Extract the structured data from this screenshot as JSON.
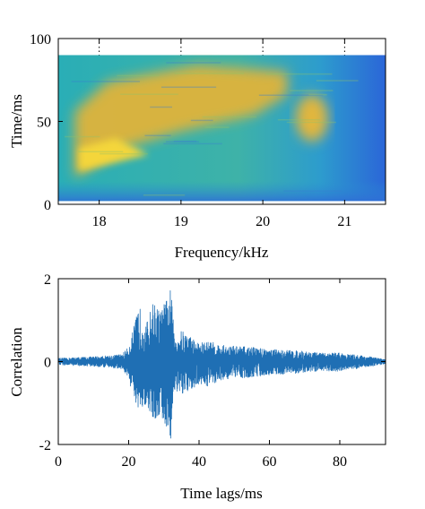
{
  "chart_data": [
    {
      "type": "heatmap",
      "title": "",
      "xlabel": "Frequency/kHz",
      "ylabel": "Time/ms",
      "xlim": [
        17.5,
        21.5
      ],
      "ylim": [
        0,
        100
      ],
      "xticks": [
        18,
        19,
        20,
        21
      ],
      "yticks": [
        0,
        50,
        100
      ],
      "xtick_labels": [
        "18",
        "19",
        "20",
        "21"
      ],
      "ytick_labels": [
        "0",
        "50",
        "100"
      ],
      "data_extent": {
        "x": [
          17.5,
          21.5
        ],
        "y": [
          2,
          90
        ]
      },
      "colormap": "parula",
      "colors": [
        "#3b4cc0",
        "#1f8fd6",
        "#2bb3c0",
        "#7fc06a",
        "#e8b53c",
        "#f7d23a"
      ],
      "grid": "dotted vertical at x ticks, top edge",
      "features": [
        {
          "description": "high-intensity band",
          "from": [
            17.7,
            22
          ],
          "to": [
            20.3,
            72
          ]
        },
        {
          "description": "high-intensity patch",
          "center": [
            20.6,
            52
          ]
        }
      ]
    },
    {
      "type": "line",
      "title": "",
      "xlabel": "Time lags/ms",
      "ylabel": "Correlation",
      "xlim": [
        0,
        93
      ],
      "ylim": [
        -2,
        2
      ],
      "xticks": [
        0,
        20,
        40,
        60,
        80
      ],
      "yticks": [
        -2,
        0,
        2
      ],
      "xtick_labels": [
        "0",
        "20",
        "40",
        "60",
        "80"
      ],
      "ytick_labels": [
        "-2",
        "0",
        "2"
      ],
      "color": "#1f6fb4",
      "envelope": {
        "x": [
          0,
          5,
          10,
          15,
          18,
          20,
          21,
          23,
          25,
          27,
          29,
          31,
          32,
          33,
          35,
          37,
          40,
          43,
          46,
          50,
          55,
          60,
          65,
          70,
          73,
          76,
          79,
          82,
          86,
          90,
          93
        ],
        "upper": [
          0.08,
          0.1,
          0.12,
          0.15,
          0.18,
          0.35,
          0.7,
          1.35,
          0.9,
          1.45,
          1.2,
          1.55,
          1.8,
          0.6,
          0.75,
          0.65,
          0.45,
          0.5,
          0.4,
          0.38,
          0.35,
          0.3,
          0.28,
          0.25,
          0.22,
          0.2,
          0.22,
          0.18,
          0.15,
          0.1,
          0.05
        ],
        "lower": [
          -0.08,
          -0.1,
          -0.12,
          -0.15,
          -0.18,
          -0.4,
          -0.8,
          -1.4,
          -1.0,
          -1.5,
          -1.3,
          -1.7,
          -1.9,
          -0.7,
          -0.85,
          -0.75,
          -0.55,
          -0.6,
          -0.45,
          -0.4,
          -0.38,
          -0.32,
          -0.3,
          -0.27,
          -0.24,
          -0.22,
          -0.24,
          -0.2,
          -0.16,
          -0.1,
          -0.05
        ]
      }
    }
  ]
}
